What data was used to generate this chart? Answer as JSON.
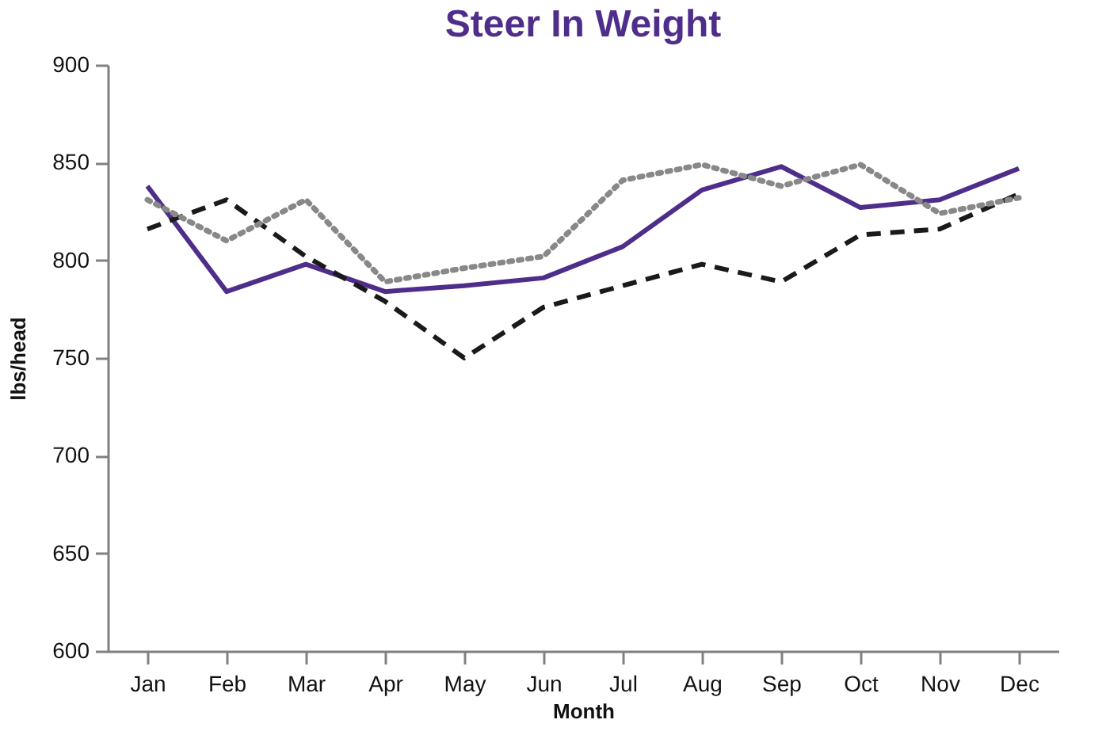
{
  "chart_data": {
    "type": "line",
    "title": "Steer In Weight",
    "xlabel": "Month",
    "ylabel": "lbs/head",
    "categories": [
      "Jan",
      "Feb",
      "Mar",
      "Apr",
      "May",
      "Jun",
      "Jul",
      "Aug",
      "Sep",
      "Oct",
      "Nov",
      "Dec"
    ],
    "series": [
      {
        "color": "#4f2d8a",
        "line_style": "solid",
        "values": [
          838,
          784,
          798,
          784,
          787,
          791,
          807,
          836,
          848,
          827,
          831,
          847
        ]
      },
      {
        "color": "#1a1a1a",
        "line_style": "dashed",
        "values": [
          816,
          831,
          802,
          779,
          750,
          776,
          787,
          798,
          789,
          813,
          816,
          834
        ]
      },
      {
        "color": "#888888",
        "line_style": "dotted",
        "values": [
          831,
          810,
          831,
          789,
          796,
          802,
          841,
          849,
          838,
          849,
          824,
          832
        ]
      }
    ],
    "ylim": [
      600,
      900
    ],
    "yticks": [
      600,
      650,
      700,
      750,
      800,
      850,
      900
    ],
    "grid": false,
    "marker": "none"
  }
}
